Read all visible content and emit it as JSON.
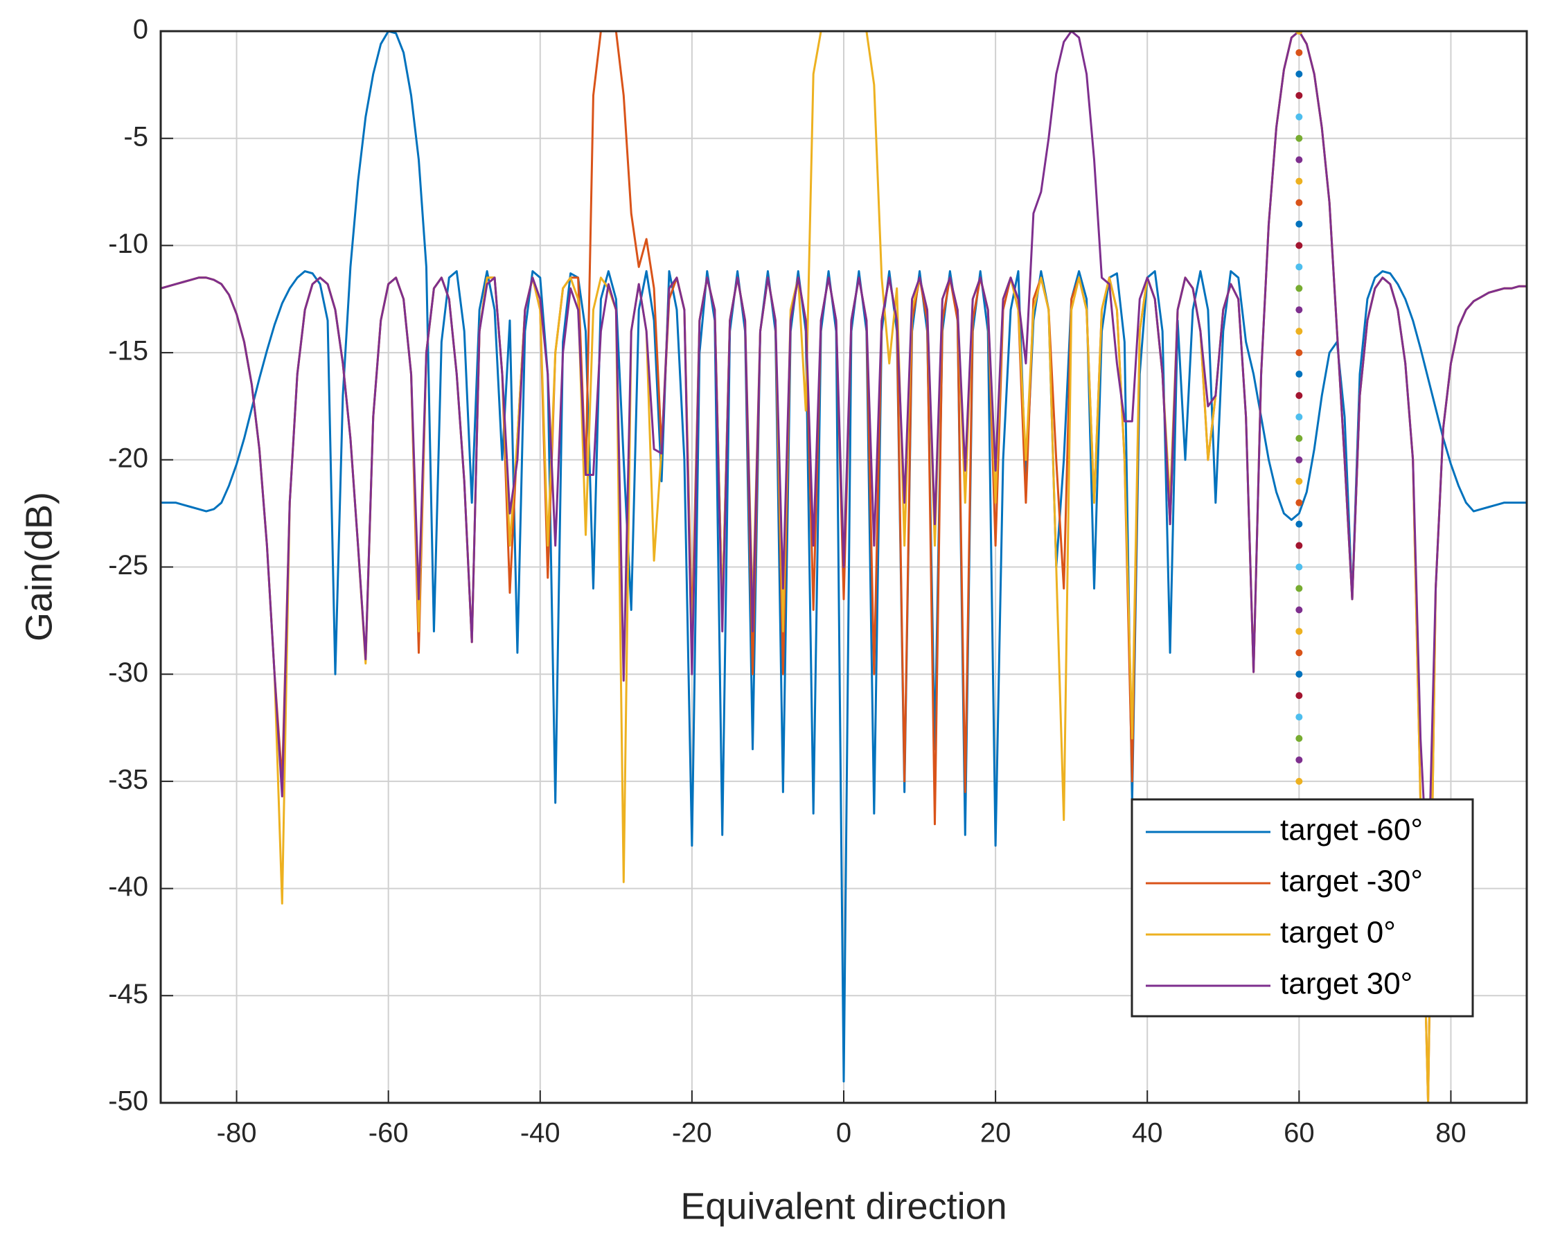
{
  "chart_data": {
    "type": "line",
    "xlabel": "Equivalent direction",
    "ylabel": "Gain(dB)",
    "xlim": [
      -90,
      90
    ],
    "ylim": [
      -50,
      0
    ],
    "xticks": [
      -80,
      -60,
      -40,
      -20,
      0,
      20,
      40,
      60,
      80
    ],
    "yticks": [
      0,
      -5,
      -10,
      -15,
      -20,
      -25,
      -30,
      -35,
      -40,
      -45,
      -50
    ],
    "grid": true,
    "legend_position": "lower-right",
    "x": [
      -90,
      -89,
      -88,
      -87,
      -86,
      -85,
      -84,
      -83,
      -82,
      -81,
      -80,
      -79,
      -78,
      -77,
      -76,
      -75,
      -74,
      -73,
      -72,
      -71,
      -70,
      -69,
      -68,
      -67,
      -66,
      -65,
      -64,
      -63,
      -62,
      -61,
      -60,
      -59,
      -58,
      -57,
      -56,
      -55,
      -54,
      -53,
      -52,
      -51,
      -50,
      -49,
      -48,
      -47,
      -46,
      -45,
      -44,
      -43,
      -42,
      -41,
      -40,
      -39,
      -38,
      -37,
      -36,
      -35,
      -34,
      -33,
      -32,
      -31,
      -30,
      -29,
      -28,
      -27,
      -26,
      -25,
      -24,
      -23,
      -22,
      -21,
      -20,
      -19,
      -18,
      -17,
      -16,
      -15,
      -14,
      -13,
      -12,
      -11,
      -10,
      -9,
      -8,
      -7,
      -6,
      -5,
      -4,
      -3,
      -2,
      -1,
      0,
      1,
      2,
      3,
      4,
      5,
      6,
      7,
      8,
      9,
      10,
      11,
      12,
      13,
      14,
      15,
      16,
      17,
      18,
      19,
      20,
      21,
      22,
      23,
      24,
      25,
      26,
      27,
      28,
      29,
      30,
      31,
      32,
      33,
      34,
      35,
      36,
      37,
      38,
      39,
      40,
      41,
      42,
      43,
      44,
      45,
      46,
      47,
      48,
      49,
      50,
      51,
      52,
      53,
      54,
      55,
      56,
      57,
      58,
      59,
      60,
      61,
      62,
      63,
      64,
      65,
      66,
      67,
      68,
      69,
      70,
      71,
      72,
      73,
      74,
      75,
      76,
      77,
      78,
      79,
      80,
      81,
      82,
      83,
      84,
      85,
      86,
      87,
      88,
      89,
      90
    ],
    "series": [
      {
        "name": "target -60°",
        "color": "#0072BD",
        "values": [
          -22,
          -22,
          -22,
          -22.1,
          -22.2,
          -22.3,
          -22.4,
          -22.3,
          -22,
          -21.2,
          -20.2,
          -19,
          -17.6,
          -16.2,
          -14.9,
          -13.7,
          -12.7,
          -12,
          -11.5,
          -11.2,
          -11.3,
          -11.8,
          -13.5,
          -30,
          -17,
          -11,
          -7,
          -4,
          -2,
          -0.6,
          0,
          -0.1,
          -1,
          -3,
          -6,
          -11,
          -28,
          -14.5,
          -11.5,
          -11.2,
          -14,
          -22,
          -13,
          -11.2,
          -13,
          -20,
          -13.5,
          -29,
          -14,
          -11.2,
          -11.5,
          -16,
          -36,
          -14.5,
          -11.3,
          -11.5,
          -14,
          -26,
          -12.5,
          -11.2,
          -12.5,
          -20,
          -27,
          -13,
          -11.2,
          -13.5,
          -21,
          -11.2,
          -13,
          -20,
          -38,
          -15,
          -11.2,
          -13.5,
          -37.5,
          -14,
          -11.2,
          -14,
          -33.5,
          -14,
          -11.2,
          -14,
          -35.5,
          -14,
          -11.2,
          -14,
          -36.5,
          -14,
          -11.2,
          -14,
          -49,
          -14,
          -11.2,
          -14,
          -36.5,
          -14,
          -11.2,
          -14,
          -35.5,
          -14,
          -11.2,
          -14,
          -33.5,
          -14,
          -11.2,
          -13.5,
          -37.5,
          -14,
          -11.2,
          -14,
          -38,
          -20,
          -13,
          -11.2,
          -21,
          -13.5,
          -11.2,
          -13,
          -25,
          -20,
          -12.5,
          -11.2,
          -12.5,
          -26,
          -14,
          -11.5,
          -11.3,
          -14.5,
          -36,
          -16,
          -11.5,
          -11.2,
          -14,
          -29,
          -13.5,
          -20,
          -13,
          -11.2,
          -13,
          -22,
          -14,
          -11.2,
          -11.5,
          -14.5,
          -16,
          -18,
          -20,
          -21.5,
          -22.5,
          -22.8,
          -22.5,
          -21.5,
          -19.5,
          -17,
          -15,
          -14.5,
          -18,
          -26.5,
          -16,
          -12.5,
          -11.5,
          -11.2,
          -11.3,
          -11.8,
          -12.5,
          -13.5,
          -14.8,
          -16.2,
          -17.6,
          -19,
          -20.2,
          -21.2,
          -22,
          -22.4,
          -22.3,
          -22.2,
          -22.1,
          -22,
          -22,
          -22,
          -22
        ]
      },
      {
        "name": "target -30°",
        "color": "#D95319",
        "values": [
          -12,
          -11.9,
          -11.8,
          -11.7,
          -11.6,
          -11.5,
          -11.5,
          -11.6,
          -11.8,
          -12.3,
          -13.2,
          -14.5,
          -16.5,
          -19.5,
          -24,
          -30,
          -35,
          -22,
          -16,
          -13,
          -11.8,
          -11.5,
          -11.8,
          -13,
          -15.5,
          -19,
          -24,
          -29.3,
          -18,
          -13.5,
          -11.8,
          -11.5,
          -12.5,
          -16,
          -29,
          -15,
          -12,
          -11.5,
          -12.5,
          -16,
          -21,
          -28.5,
          -14,
          -11.5,
          -11.5,
          -16,
          -26.2,
          -19,
          -13,
          -11.5,
          -13,
          -25.5,
          -15,
          -12,
          -11.5,
          -11.5,
          -20.7,
          -3,
          0,
          0,
          0,
          -3,
          -8.5,
          -11,
          -9.7,
          -12,
          -19.5,
          -12.5,
          -11.5,
          -13,
          -28,
          -13.5,
          -11.5,
          -13,
          -27,
          -13.5,
          -11.5,
          -13.5,
          -30,
          -14,
          -11.5,
          -13.5,
          -30,
          -13.5,
          -11.5,
          -13.5,
          -27,
          -13.5,
          -11.5,
          -13.5,
          -26.5,
          -13.5,
          -11.5,
          -13.5,
          -30,
          -13.5,
          -11.5,
          -13.5,
          -35,
          -13.5,
          -11.5,
          -13.5,
          -37,
          -13.5,
          -11.5,
          -13.5,
          -35.5,
          -13.5,
          -11.5,
          -13,
          -24,
          -13,
          -11.5,
          -13,
          -22,
          -12.5,
          -11.5,
          -13,
          -20,
          -26,
          -12.5,
          -11.5,
          -13,
          -22,
          -13,
          -11.5,
          -13,
          -20,
          -35,
          -14,
          -11.5,
          -12.5,
          -16,
          -23,
          -13,
          -11.5,
          -12,
          -14,
          -20,
          -17,
          -13,
          -11.8,
          -12.5,
          -18,
          -29.9,
          -16,
          -9,
          -4.5,
          -1.8,
          -0.3,
          0,
          -0.6,
          -2,
          -4.5,
          -8,
          -14,
          -20,
          -26.5,
          -17,
          -13.5,
          -12,
          -11.5,
          -11.8,
          -13,
          -15.5,
          -20,
          -36,
          -50,
          -26,
          -18.5,
          -15.5,
          -13.8,
          -13,
          -12.6,
          -12.4,
          -12.2,
          -12.1,
          -12,
          -12,
          -11.9,
          -11.9
        ]
      },
      {
        "name": "target 0°",
        "color": "#EDB120",
        "values": [
          -12,
          -11.9,
          -11.8,
          -11.7,
          -11.6,
          -11.5,
          -11.5,
          -11.6,
          -11.8,
          -12.3,
          -13.2,
          -14.5,
          -16.5,
          -19.5,
          -24,
          -30,
          -40.7,
          -22,
          -16,
          -13,
          -11.8,
          -11.5,
          -11.8,
          -13,
          -15.5,
          -19,
          -24,
          -29.5,
          -18,
          -13.5,
          -11.8,
          -11.5,
          -12.5,
          -16,
          -28,
          -15,
          -12,
          -11.5,
          -12.5,
          -16,
          -21,
          -28.5,
          -14,
          -11.5,
          -11.5,
          -16,
          -24,
          -19,
          -13,
          -11.5,
          -13,
          -24,
          -15,
          -12,
          -11.5,
          -12.5,
          -23.5,
          -13,
          -11.5,
          -12,
          -13,
          -39.7,
          -14,
          -11.8,
          -14,
          -24.7,
          -19.5,
          -12,
          -11.5,
          -13,
          -29,
          -13.5,
          -11.5,
          -13,
          -27,
          -13.5,
          -11.5,
          -13.5,
          -27,
          -14,
          -11.5,
          -13.5,
          -28,
          -13,
          -11.5,
          -17.7,
          -2,
          0,
          0,
          0,
          0,
          0,
          0,
          0,
          -2.5,
          -11.5,
          -15.5,
          -12,
          -24,
          -13,
          -11.5,
          -13,
          -24,
          -12.5,
          -11.5,
          -13,
          -22,
          -12.5,
          -11.5,
          -13,
          -22,
          -12.5,
          -11.5,
          -13,
          -20,
          -13,
          -11.5,
          -13,
          -25,
          -36.8,
          -13,
          -11.5,
          -13,
          -22,
          -13,
          -11.5,
          -13,
          -20,
          -33,
          -14,
          -11.5,
          -12.5,
          -16,
          -22,
          -13,
          -11.5,
          -12,
          -14,
          -20,
          -17,
          -13,
          -11.8,
          -12.5,
          -18,
          -29.9,
          -16,
          -9,
          -4.5,
          -1.8,
          -0.3,
          0,
          -0.6,
          -2,
          -4.5,
          -8,
          -14,
          -20,
          -26.5,
          -17,
          -13.5,
          -12,
          -11.5,
          -11.8,
          -13,
          -15.5,
          -20,
          -36,
          -50,
          -26,
          -18.5,
          -15.5,
          -13.8,
          -13,
          -12.6,
          -12.4,
          -12.2,
          -12.1,
          -12,
          -12,
          -11.9,
          -11.9
        ]
      },
      {
        "name": "target 30°",
        "color": "#7E2F8E",
        "values": [
          -12,
          -11.9,
          -11.8,
          -11.7,
          -11.6,
          -11.5,
          -11.5,
          -11.6,
          -11.8,
          -12.3,
          -13.2,
          -14.5,
          -16.5,
          -19.5,
          -24,
          -30,
          -35.7,
          -22,
          -16,
          -13,
          -11.8,
          -11.5,
          -11.8,
          -13,
          -15.5,
          -19,
          -24,
          -29.3,
          -18,
          -13.5,
          -11.8,
          -11.5,
          -12.5,
          -16,
          -26.5,
          -15,
          -12,
          -11.5,
          -12.5,
          -16,
          -21,
          -28.5,
          -14,
          -11.8,
          -11.5,
          -16,
          -22.5,
          -20,
          -13,
          -11.5,
          -12.5,
          -16,
          -24,
          -15,
          -12,
          -13,
          -20.7,
          -20.7,
          -14,
          -11.8,
          -13,
          -30.3,
          -14,
          -11.8,
          -14,
          -19.5,
          -19.7,
          -12,
          -11.5,
          -13,
          -30,
          -13.5,
          -11.5,
          -13,
          -28,
          -13.5,
          -11.5,
          -13.5,
          -28,
          -14,
          -11.5,
          -13.5,
          -26,
          -13.5,
          -11.5,
          -13.5,
          -24,
          -13.5,
          -11.5,
          -13.5,
          -25,
          -13.5,
          -11.5,
          -13.5,
          -24,
          -13.5,
          -11.5,
          -13.5,
          -22,
          -12.5,
          -11.5,
          -13,
          -23,
          -12.5,
          -11.5,
          -13,
          -20.5,
          -12.5,
          -11.5,
          -13,
          -20.5,
          -12.5,
          -11.5,
          -12.5,
          -15.5,
          -8.5,
          -7.5,
          -5,
          -2,
          -0.5,
          0,
          -0.3,
          -2,
          -6,
          -11.5,
          -11.8,
          -15.5,
          -18.2,
          -18.2,
          -12.5,
          -11.5,
          -12.5,
          -16,
          -23,
          -13,
          -11.5,
          -12,
          -14,
          -17.5,
          -17,
          -13,
          -11.8,
          -12.5,
          -18,
          -29.9,
          -16,
          -9,
          -4.5,
          -1.8,
          -0.3,
          0,
          -0.6,
          -2,
          -4.5,
          -8,
          -14,
          -20,
          -26.5,
          -17,
          -13.5,
          -12,
          -11.5,
          -11.8,
          -13,
          -15.5,
          -20,
          -33,
          -40,
          -26,
          -18.5,
          -15.5,
          -13.8,
          -13,
          -12.6,
          -12.4,
          -12.2,
          -12.1,
          -12,
          -12,
          -11.9,
          -11.9
        ]
      }
    ],
    "marker_line": {
      "x": 60,
      "y": [
        0,
        -1,
        -2,
        -3,
        -4,
        -5,
        -6,
        -7,
        -8,
        -9,
        -10,
        -11,
        -12,
        -13,
        -14,
        -15,
        -16,
        -17,
        -18,
        -19,
        -20,
        -21,
        -22,
        -23,
        -24,
        -25,
        -26,
        -27,
        -28,
        -29,
        -30,
        -31,
        -32,
        -33,
        -34,
        -35
      ],
      "colors": [
        "#EDB120",
        "#D95319",
        "#0072BD",
        "#A2142F",
        "#4DBEEE",
        "#77AC30",
        "#7E2F8E"
      ]
    }
  }
}
